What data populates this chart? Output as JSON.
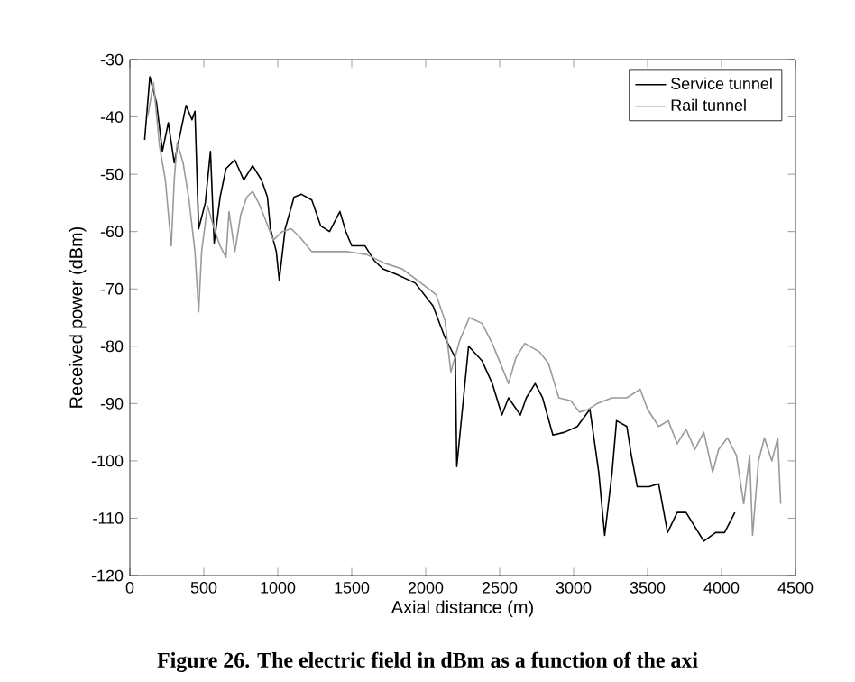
{
  "chart_data": {
    "type": "line",
    "xlabel": "Axial distance (m)",
    "ylabel": "Received power (dBm)",
    "annotations": [
      "Figure 26. The electric field in dBm as a function of the axi"
    ],
    "xlim": [
      0,
      4500
    ],
    "ylim": [
      -120,
      -30
    ],
    "xticks": [
      0,
      500,
      1000,
      1500,
      2000,
      2500,
      3000,
      3500,
      4000,
      4500
    ],
    "yticks": [
      -120,
      -110,
      -100,
      -90,
      -80,
      -70,
      -60,
      -50,
      -40,
      -30
    ],
    "legend": "top right",
    "series": [
      {
        "name": "Service tunnel",
        "color": "#000000",
        "x": [
          100,
          135,
          180,
          220,
          260,
          300,
          340,
          380,
          420,
          440,
          465,
          510,
          545,
          570,
          610,
          650,
          710,
          770,
          830,
          890,
          930,
          950,
          990,
          1010,
          1050,
          1110,
          1160,
          1230,
          1290,
          1350,
          1420,
          1460,
          1500,
          1590,
          1650,
          1710,
          1805,
          1930,
          2050,
          2130,
          2200,
          2210,
          2290,
          2380,
          2450,
          2515,
          2560,
          2640,
          2680,
          2740,
          2790,
          2860,
          2940,
          3025,
          3110,
          3170,
          3210,
          3260,
          3290,
          3360,
          3390,
          3430,
          3510,
          3575,
          3635,
          3700,
          3760,
          3820,
          3880,
          3960,
          4020,
          4090
        ],
        "values": [
          -44,
          -33,
          -37.5,
          -46,
          -41,
          -48,
          -43,
          -38,
          -40.5,
          -39,
          -59.5,
          -55,
          -46,
          -62,
          -54,
          -49,
          -47.5,
          -51,
          -48.5,
          -51,
          -54,
          -59.5,
          -63.5,
          -68.5,
          -59.5,
          -54,
          -53.5,
          -54.5,
          -59,
          -60,
          -56.5,
          -60,
          -62.5,
          -62.5,
          -65,
          -66.5,
          -67.5,
          -69,
          -73,
          -78.5,
          -82,
          -101,
          -80,
          -82.5,
          -86.5,
          -92,
          -89,
          -92,
          -89,
          -86.5,
          -89,
          -95.5,
          -95,
          -94,
          -91,
          -102,
          -113,
          -102,
          -93,
          -94,
          -99,
          -104.5,
          -104.5,
          -104,
          -112.5,
          -109,
          -109,
          -111.5,
          -114,
          -112.5,
          -112.5,
          -109
        ]
      },
      {
        "name": "Rail tunnel",
        "color": "#9a9a9a",
        "x": [
          120,
          160,
          200,
          240,
          280,
          300,
          320,
          360,
          400,
          440,
          465,
          485,
          525,
          570,
          610,
          650,
          670,
          710,
          750,
          790,
          830,
          870,
          910,
          970,
          1030,
          1090,
          1150,
          1230,
          1350,
          1475,
          1600,
          1720,
          1840,
          1970,
          2070,
          2130,
          2170,
          2230,
          2295,
          2380,
          2450,
          2560,
          2610,
          2670,
          2770,
          2830,
          2900,
          2980,
          3040,
          3100,
          3160,
          3260,
          3360,
          3450,
          3500,
          3575,
          3640,
          3700,
          3760,
          3820,
          3880,
          3940,
          3980,
          4040,
          4100,
          4150,
          4190,
          4210,
          4250,
          4290,
          4340,
          4380,
          4400
        ],
        "values": [
          -40,
          -34,
          -45,
          -51,
          -62.5,
          -51,
          -44.5,
          -48,
          -54.5,
          -63.5,
          -74,
          -63.5,
          -55.5,
          -59.5,
          -62.5,
          -64.5,
          -56.5,
          -63.5,
          -57,
          -54,
          -53,
          -55,
          -57.5,
          -61.5,
          -60,
          -59.5,
          -61,
          -63.5,
          -63.5,
          -63.5,
          -64,
          -65.5,
          -66.5,
          -69,
          -71,
          -75.5,
          -84.5,
          -79,
          -75,
          -76,
          -79.5,
          -86.5,
          -82,
          -79.5,
          -81,
          -83,
          -89,
          -89.5,
          -91.5,
          -91,
          -90,
          -89,
          -89,
          -87.5,
          -91,
          -94,
          -93,
          -97,
          -94.5,
          -98,
          -95,
          -102,
          -98,
          -96,
          -99,
          -107.5,
          -99,
          -113,
          -100,
          -96,
          -100,
          -96,
          -107.5
        ]
      }
    ]
  }
}
